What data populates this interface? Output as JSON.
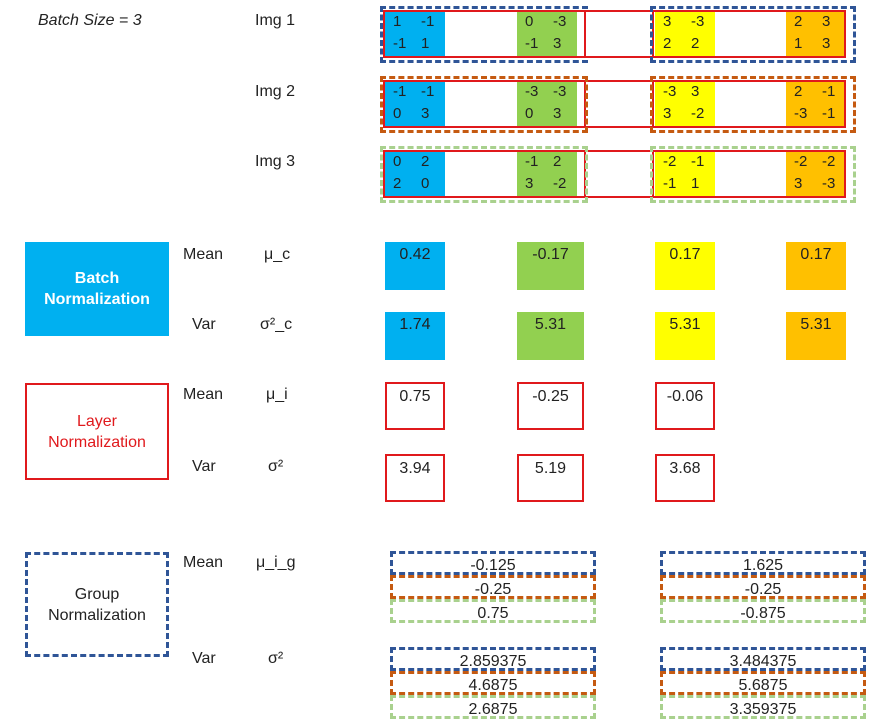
{
  "batch_size_label": "Batch Size = 3",
  "images": [
    {
      "label": "Img 1",
      "channels": [
        [
          "1",
          "-1",
          "-1",
          "1"
        ],
        [
          "0",
          "-3",
          "-1",
          "3"
        ],
        [
          "3",
          "-3",
          "2",
          "2"
        ],
        [
          "2",
          "3",
          "1",
          "3"
        ]
      ]
    },
    {
      "label": "Img 2",
      "channels": [
        [
          "-1",
          "-1",
          "0",
          "3"
        ],
        [
          "-3",
          "-3",
          "0",
          "3"
        ],
        [
          "-3",
          "3",
          "3",
          "-2"
        ],
        [
          "2",
          "-1",
          "-3",
          "-1"
        ]
      ]
    },
    {
      "label": "Img 3",
      "channels": [
        [
          "0",
          "2",
          "2",
          "0"
        ],
        [
          "-1",
          "2",
          "3",
          "-2"
        ],
        [
          "-2",
          "-1",
          "-1",
          "1"
        ],
        [
          "-2",
          "-2",
          "3",
          "-3"
        ]
      ]
    }
  ],
  "channel_colors": [
    "#00b0f0",
    "#92d050",
    "#ffff00",
    "#ffc000"
  ],
  "batch_norm": {
    "title_line1": "Batch",
    "title_line2": "Normalization",
    "mean_label": "Mean",
    "mean_symbol": "μ_c",
    "var_label": "Var",
    "var_symbol": "σ²_c",
    "means": [
      "0.42",
      "-0.17",
      "0.17",
      "0.17"
    ],
    "vars": [
      "1.74",
      "5.31",
      "5.31",
      "5.31"
    ]
  },
  "layer_norm": {
    "title_line1": "Layer",
    "title_line2": "Normalization",
    "mean_label": "Mean",
    "mean_symbol": "μ_i",
    "var_label": "Var",
    "var_symbol": "σ²",
    "means": [
      "0.75",
      "-0.25",
      "-0.06"
    ],
    "vars": [
      "3.94",
      "5.19",
      "3.68"
    ]
  },
  "group_norm": {
    "title_line1": "Group",
    "title_line2": "Normalization",
    "mean_label": "Mean",
    "mean_symbol": "μ_i_g",
    "var_label": "Var",
    "var_symbol": "σ²",
    "means_group1": [
      "-0.125",
      "-0.25",
      "0.75"
    ],
    "means_group2": [
      "1.625",
      "-0.25",
      "-0.875"
    ],
    "vars_group1": [
      "2.859375",
      "4.6875",
      "2.6875"
    ],
    "vars_group2": [
      "3.484375",
      "5.6875",
      "3.359375"
    ]
  }
}
